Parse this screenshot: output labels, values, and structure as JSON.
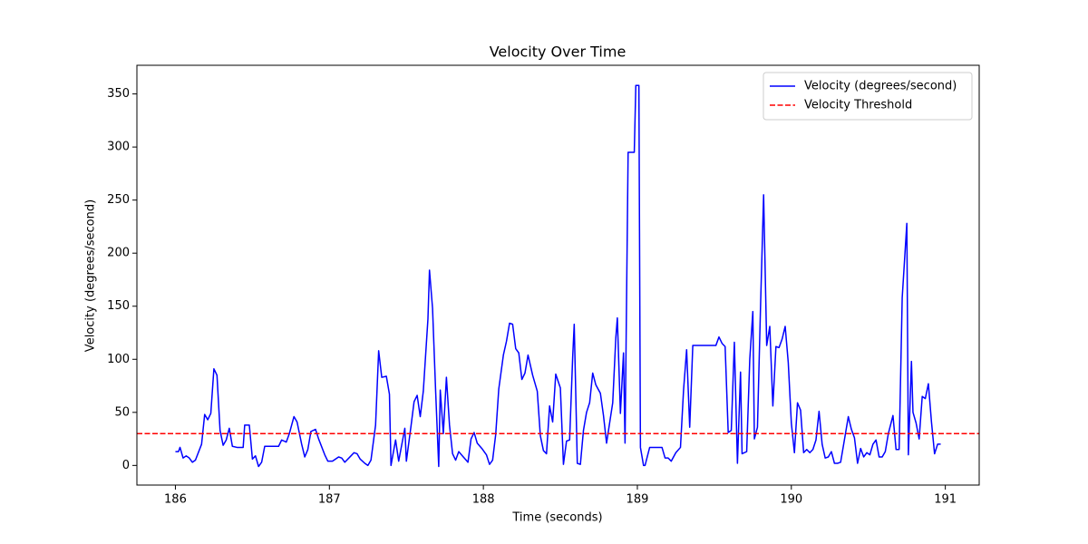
{
  "chart_data": {
    "type": "line",
    "title": "Velocity Over Time",
    "xlabel": "Time (seconds)",
    "ylabel": "Velocity (degrees/second)",
    "x": [
      186.0,
      186.02,
      186.03,
      186.05,
      186.07,
      186.09,
      186.11,
      186.13,
      186.17,
      186.19,
      186.21,
      186.23,
      186.25,
      186.27,
      186.29,
      186.31,
      186.33,
      186.35,
      186.37,
      186.4,
      186.44,
      186.45,
      186.48,
      186.5,
      186.52,
      186.54,
      186.56,
      186.58,
      186.67,
      186.69,
      186.72,
      186.74,
      186.77,
      186.79,
      186.82,
      186.84,
      186.86,
      186.88,
      186.91,
      186.93,
      186.97,
      186.99,
      187.02,
      187.06,
      187.08,
      187.1,
      187.14,
      187.16,
      187.18,
      187.2,
      187.23,
      187.25,
      187.27,
      187.3,
      187.32,
      187.34,
      187.37,
      187.39,
      187.4,
      187.43,
      187.45,
      187.49,
      187.5,
      187.53,
      187.55,
      187.57,
      187.59,
      187.61,
      187.64,
      187.65,
      187.67,
      187.69,
      187.71,
      187.72,
      187.74,
      187.76,
      187.78,
      187.8,
      187.82,
      187.84,
      187.87,
      187.9,
      187.92,
      187.94,
      187.96,
      187.99,
      188.02,
      188.04,
      188.06,
      188.08,
      188.1,
      188.13,
      188.15,
      188.17,
      188.19,
      188.21,
      188.23,
      188.25,
      188.27,
      188.29,
      188.32,
      188.35,
      188.37,
      188.39,
      188.41,
      188.43,
      188.45,
      188.47,
      188.5,
      188.52,
      188.54,
      188.56,
      188.58,
      188.59,
      188.61,
      188.63,
      188.65,
      188.67,
      188.69,
      188.71,
      188.73,
      188.76,
      188.78,
      188.8,
      188.82,
      188.84,
      188.86,
      188.87,
      188.89,
      188.91,
      188.92,
      188.94,
      188.98,
      188.99,
      189.01,
      189.02,
      189.04,
      189.05,
      189.08,
      189.16,
      189.18,
      189.2,
      189.22,
      189.25,
      189.28,
      189.3,
      189.32,
      189.34,
      189.36,
      189.51,
      189.53,
      189.55,
      189.57,
      189.59,
      189.61,
      189.63,
      189.65,
      189.67,
      189.68,
      189.71,
      189.73,
      189.75,
      189.76,
      189.78,
      189.8,
      189.82,
      189.84,
      189.86,
      189.88,
      189.9,
      189.92,
      189.94,
      189.96,
      189.98,
      190.0,
      190.02,
      190.04,
      190.06,
      190.08,
      190.1,
      190.12,
      190.14,
      190.16,
      190.18,
      190.2,
      190.22,
      190.24,
      190.26,
      190.28,
      190.3,
      190.32,
      190.34,
      190.37,
      190.39,
      190.41,
      190.43,
      190.45,
      190.47,
      190.49,
      190.51,
      190.53,
      190.55,
      190.57,
      190.59,
      190.61,
      190.63,
      190.66,
      190.68,
      190.7,
      190.72,
      190.75,
      190.76,
      190.78,
      190.79,
      190.81,
      190.83,
      190.85,
      190.87,
      190.89,
      190.91,
      190.93,
      190.95,
      190.97
    ],
    "series": [
      {
        "name": "Velocity (degrees/second)",
        "color": "#0000ff",
        "values": [
          13,
          13,
          17,
          7,
          9,
          7,
          3,
          5,
          20,
          48,
          43,
          49,
          91,
          85,
          33,
          19,
          24,
          35,
          18,
          17,
          17,
          38,
          38,
          6,
          9,
          -1,
          3,
          18,
          18,
          24,
          22,
          30,
          46,
          41,
          20,
          8,
          15,
          32,
          34,
          25,
          10,
          4,
          4,
          8,
          7,
          3,
          9,
          12,
          11,
          6,
          2,
          0,
          5,
          38,
          108,
          83,
          84,
          67,
          0,
          24,
          4,
          35,
          4,
          37,
          60,
          66,
          46,
          70,
          138,
          184,
          148,
          70,
          -1,
          71,
          30,
          83,
          38,
          11,
          5,
          13,
          8,
          3,
          25,
          31,
          21,
          16,
          10,
          1,
          5,
          29,
          72,
          104,
          117,
          134,
          133,
          110,
          106,
          81,
          87,
          104,
          85,
          70,
          28,
          14,
          11,
          56,
          41,
          86,
          73,
          1,
          23,
          24,
          102,
          133,
          2,
          1,
          33,
          50,
          59,
          87,
          76,
          68,
          47,
          21,
          40,
          59,
          120,
          139,
          49,
          106,
          21,
          295,
          295,
          358,
          358,
          17,
          0,
          0,
          17,
          17,
          7,
          7,
          4,
          12,
          17,
          71,
          109,
          36,
          113,
          113,
          121,
          115,
          112,
          31,
          33,
          116,
          2,
          88,
          11,
          13,
          100,
          145,
          25,
          36,
          150,
          255,
          113,
          131,
          56,
          112,
          111,
          119,
          131,
          97,
          40,
          12,
          59,
          52,
          12,
          15,
          12,
          15,
          24,
          51,
          20,
          7,
          8,
          13,
          2,
          2,
          3,
          20,
          46,
          34,
          26,
          2,
          16,
          8,
          12,
          10,
          20,
          24,
          8,
          8,
          13,
          30,
          47,
          15,
          15,
          158,
          228,
          10,
          98,
          50,
          40,
          25,
          65,
          63,
          77,
          41,
          11,
          20,
          20
        ]
      }
    ],
    "threshold": {
      "name": "Velocity Threshold",
      "color": "#ff0000",
      "value": 30
    },
    "xlim": [
      185.75,
      191.22
    ],
    "ylim": [
      -18.5,
      377
    ],
    "xticks": [
      186,
      187,
      188,
      189,
      190,
      191
    ],
    "yticks": [
      0,
      50,
      100,
      150,
      200,
      250,
      300,
      350
    ],
    "legend": "upper right"
  }
}
